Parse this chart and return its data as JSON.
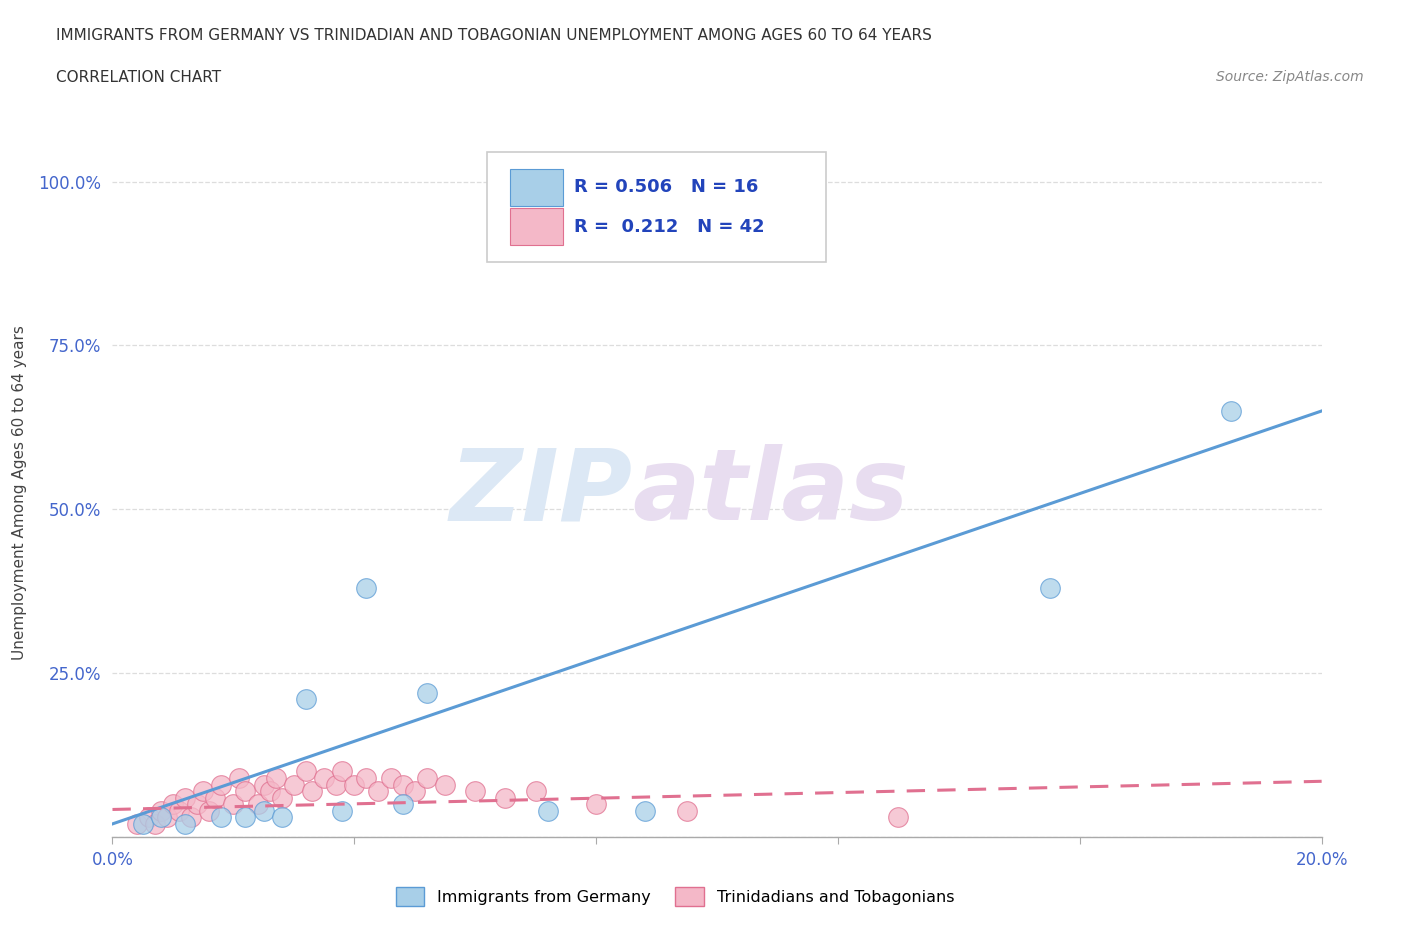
{
  "title_line1": "IMMIGRANTS FROM GERMANY VS TRINIDADIAN AND TOBAGONIAN UNEMPLOYMENT AMONG AGES 60 TO 64 YEARS",
  "title_line2": "CORRELATION CHART",
  "source_text": "Source: ZipAtlas.com",
  "ylabel": "Unemployment Among Ages 60 to 64 years",
  "xlim": [
    0.0,
    0.2
  ],
  "ylim": [
    0.0,
    1.05
  ],
  "xticks": [
    0.0,
    0.04,
    0.08,
    0.12,
    0.16,
    0.2
  ],
  "xtick_labels": [
    "0.0%",
    "",
    "",
    "",
    "",
    "20.0%"
  ],
  "yticks": [
    0.0,
    0.25,
    0.5,
    0.75,
    1.0
  ],
  "ytick_labels": [
    "",
    "25.0%",
    "50.0%",
    "75.0%",
    "100.0%"
  ],
  "color_blue": "#a8cfe8",
  "color_pink": "#f4b8c8",
  "color_blue_line": "#5b9bd5",
  "color_pink_line": "#e07090",
  "legend_R_blue": "0.506",
  "legend_N_blue": "16",
  "legend_R_pink": "0.212",
  "legend_N_pink": "42",
  "watermark_zip": "ZIP",
  "watermark_atlas": "atlas",
  "blue_scatter_x": [
    0.005,
    0.008,
    0.012,
    0.018,
    0.022,
    0.025,
    0.028,
    0.032,
    0.038,
    0.042,
    0.048,
    0.052,
    0.072,
    0.088,
    0.155,
    0.185
  ],
  "blue_scatter_y": [
    0.02,
    0.03,
    0.02,
    0.03,
    0.03,
    0.04,
    0.03,
    0.21,
    0.04,
    0.38,
    0.05,
    0.22,
    0.04,
    0.04,
    0.38,
    0.65
  ],
  "pink_scatter_x": [
    0.004,
    0.006,
    0.007,
    0.008,
    0.009,
    0.01,
    0.011,
    0.012,
    0.013,
    0.014,
    0.015,
    0.016,
    0.017,
    0.018,
    0.02,
    0.021,
    0.022,
    0.024,
    0.025,
    0.026,
    0.027,
    0.028,
    0.03,
    0.032,
    0.033,
    0.035,
    0.037,
    0.038,
    0.04,
    0.042,
    0.044,
    0.046,
    0.048,
    0.05,
    0.052,
    0.055,
    0.06,
    0.065,
    0.07,
    0.08,
    0.095,
    0.13
  ],
  "pink_scatter_y": [
    0.02,
    0.03,
    0.02,
    0.04,
    0.03,
    0.05,
    0.04,
    0.06,
    0.03,
    0.05,
    0.07,
    0.04,
    0.06,
    0.08,
    0.05,
    0.09,
    0.07,
    0.05,
    0.08,
    0.07,
    0.09,
    0.06,
    0.08,
    0.1,
    0.07,
    0.09,
    0.08,
    0.1,
    0.08,
    0.09,
    0.07,
    0.09,
    0.08,
    0.07,
    0.09,
    0.08,
    0.07,
    0.06,
    0.07,
    0.05,
    0.04,
    0.03
  ],
  "blue_line_x0": 0.0,
  "blue_line_y0": 0.02,
  "blue_line_x1": 0.2,
  "blue_line_y1": 0.65,
  "pink_line_x0": 0.0,
  "pink_line_y0": 0.042,
  "pink_line_x1": 0.2,
  "pink_line_y1": 0.085,
  "background_color": "#ffffff",
  "grid_color": "#dddddd"
}
